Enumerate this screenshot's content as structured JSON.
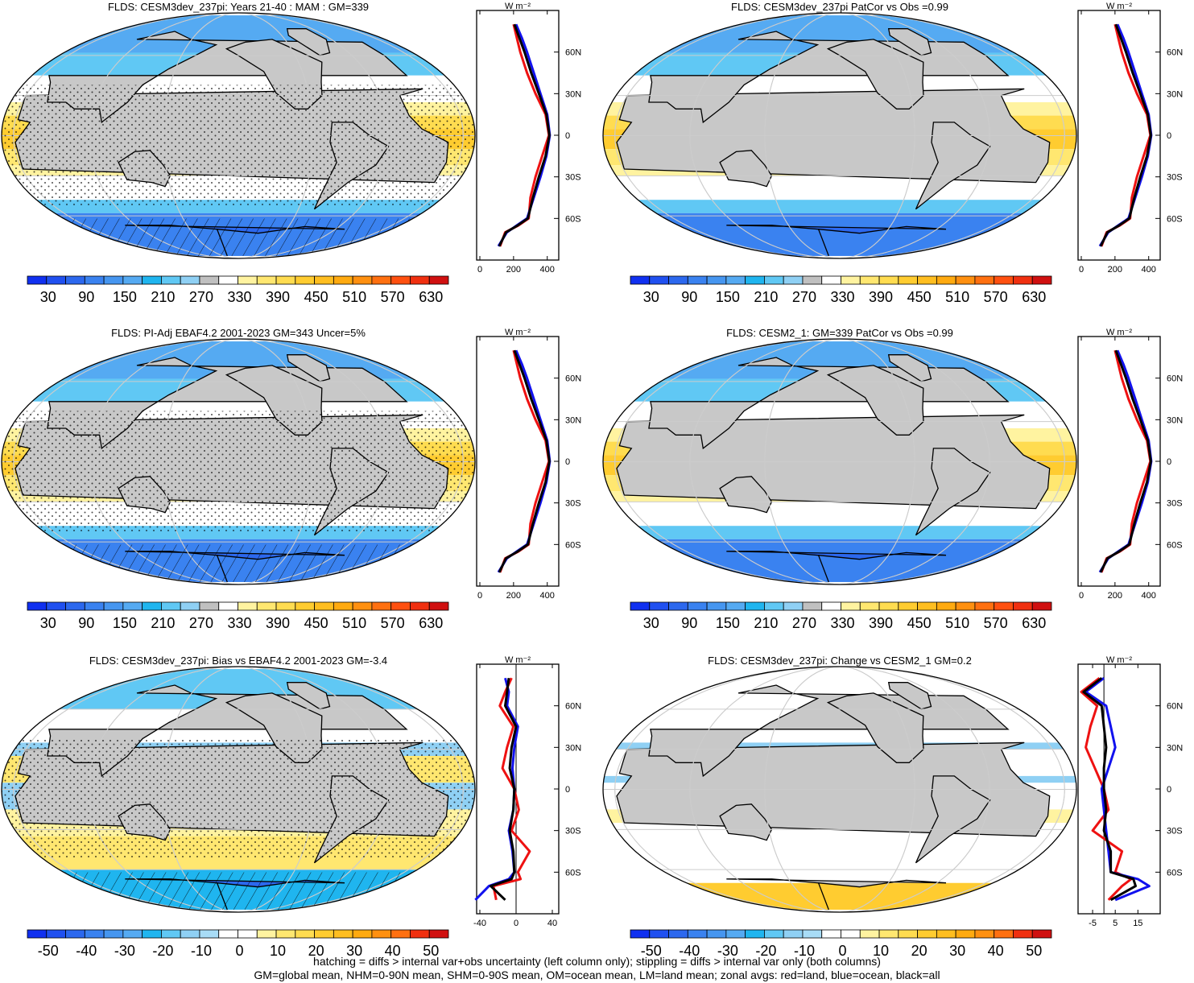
{
  "palette_full": [
    "#1030f0",
    "#2050f0",
    "#2c68ee",
    "#3a82f0",
    "#4696f0",
    "#55aaf2",
    "#1fb5ef",
    "#60c8f4",
    "#8fd0f4",
    "#c0c0c0",
    "#ffffff",
    "#fff3a0",
    "#ffe770",
    "#ffdc50",
    "#ffcc30",
    "#ffbe20",
    "#ffaa10",
    "#ff9010",
    "#ff7010",
    "#ff5010",
    "#f03010",
    "#d01010"
  ],
  "palette_diff": [
    "#1030f0",
    "#2050f0",
    "#2c68ee",
    "#3a82f0",
    "#4696f0",
    "#55aaf2",
    "#1fb5ef",
    "#60c8f4",
    "#8fd0f4",
    "#a8dcf6",
    "#ffffff",
    "#ffffff",
    "#fff3a0",
    "#ffe770",
    "#ffdc50",
    "#ffcc30",
    "#ffbe20",
    "#ffaa10",
    "#ff9010",
    "#ff7010",
    "#f03010",
    "#d01010"
  ],
  "colorbar_full_labels": [
    "30",
    "90",
    "150",
    "210",
    "270",
    "330",
    "390",
    "450",
    "510",
    "570",
    "630"
  ],
  "colorbar_diff_labels": [
    "-50",
    "-40",
    "-30",
    "-20",
    "-10",
    "0",
    "10",
    "20",
    "30",
    "40",
    "50"
  ],
  "zonal_units": "W m⁻²",
  "lat_labels": [
    "60N",
    "30N",
    "0",
    "30S",
    "60S"
  ],
  "panels": [
    {
      "title": "FLDS: CESM3dev_237pi: Years 21-40 : MAM : GM=339",
      "kind": "full",
      "stipple": true,
      "hatch": true,
      "zonal_xticks": [
        "0",
        "200",
        "400"
      ]
    },
    {
      "title": "FLDS: CESM3dev_237pi PatCor vs Obs =0.99",
      "kind": "full",
      "stipple": false,
      "hatch": false,
      "zonal_xticks": [
        "0",
        "200",
        "400"
      ]
    },
    {
      "title": "FLDS: PI-Adj EBAF4.2 2001-2023 GM=343 Uncer=5%",
      "kind": "full",
      "stipple": true,
      "hatch": true,
      "zonal_xticks": [
        "0",
        "200",
        "400"
      ]
    },
    {
      "title": "FLDS: CESM2_1: GM=339 PatCor vs Obs =0.99",
      "kind": "full",
      "stipple": false,
      "hatch": false,
      "zonal_xticks": [
        "0",
        "200",
        "400"
      ]
    },
    {
      "title": "FLDS: CESM3dev_237pi: Bias vs EBAF4.2 2001-2023 GM=-3.4",
      "kind": "bias",
      "stipple": true,
      "hatch": true,
      "zonal_xticks": [
        "-40",
        "0",
        "40"
      ]
    },
    {
      "title": "FLDS: CESM3dev_237pi: Change vs CESM2_1 GM=0.2",
      "kind": "change",
      "stipple": false,
      "hatch": false,
      "zonal_xticks": [
        "-5",
        "5",
        "15"
      ]
    }
  ],
  "chart_data": {
    "type": "line",
    "description": "Zonal-mean downward longwave flux profiles (x = flux, y = latitude)",
    "lat": [
      -80,
      -70,
      -65,
      -60,
      -45,
      -30,
      -15,
      0,
      15,
      30,
      45,
      60,
      70,
      80
    ],
    "full_field": {
      "xlim": [
        0,
        430
      ],
      "series": [
        {
          "name": "red=land",
          "color": "#ee1111",
          "values": [
            120,
            150,
            230,
            290,
            300,
            330,
            370,
            410,
            390,
            330,
            280,
            240,
            220,
            200
          ]
        },
        {
          "name": "blue=ocean",
          "color": "#1111ee",
          "values": [
            110,
            160,
            220,
            280,
            320,
            360,
            395,
            415,
            400,
            360,
            320,
            280,
            250,
            215
          ]
        },
        {
          "name": "black=all",
          "color": "#000000",
          "values": [
            115,
            155,
            225,
            285,
            315,
            350,
            390,
            413,
            395,
            350,
            305,
            265,
            235,
            205
          ]
        }
      ]
    },
    "bias": {
      "xlim": [
        -40,
        40
      ],
      "series": [
        {
          "name": "red=land",
          "color": "#ee1111",
          "values": [
            -22,
            -25,
            5,
            2,
            15,
            -5,
            3,
            -2,
            -15,
            -10,
            -3,
            -18,
            -12,
            -5
          ]
        },
        {
          "name": "blue=ocean",
          "color": "#1111ee",
          "values": [
            -45,
            -30,
            -8,
            -2,
            -4,
            -8,
            -3,
            -2,
            -4,
            -2,
            2,
            -10,
            -8,
            -12
          ]
        },
        {
          "name": "black=all",
          "color": "#000000",
          "values": [
            -12,
            -28,
            -5,
            -2,
            -3,
            -7,
            -3,
            -2,
            -7,
            -5,
            0,
            -12,
            -10,
            -8
          ]
        }
      ]
    },
    "change": {
      "xlim": [
        -10,
        22
      ],
      "series": [
        {
          "name": "red=land",
          "color": "#ee1111",
          "values": [
            2,
            8,
            12,
            5,
            8,
            -5,
            2,
            0,
            -4,
            -8,
            -6,
            -3,
            -10,
            -2
          ]
        },
        {
          "name": "blue=ocean",
          "color": "#1111ee",
          "values": [
            5,
            20,
            15,
            3,
            2,
            1,
            0,
            -1,
            2,
            5,
            3,
            1,
            -8,
            0
          ]
        },
        {
          "name": "black=all",
          "color": "#000000",
          "values": [
            3,
            14,
            13,
            3,
            3,
            0,
            1,
            0,
            0,
            1,
            0,
            -1,
            -9,
            -1
          ]
        }
      ]
    }
  },
  "footer": {
    "line1": "hatching = diffs > internal var+obs uncertainty (left column only); stippling = diffs > internal var only (both columns)",
    "line2": "GM=global mean, NHM=0-90N mean, SHM=0-90S mean, OM=ocean mean, LM=land mean; zonal avgs: red=land, blue=ocean, black=all"
  }
}
